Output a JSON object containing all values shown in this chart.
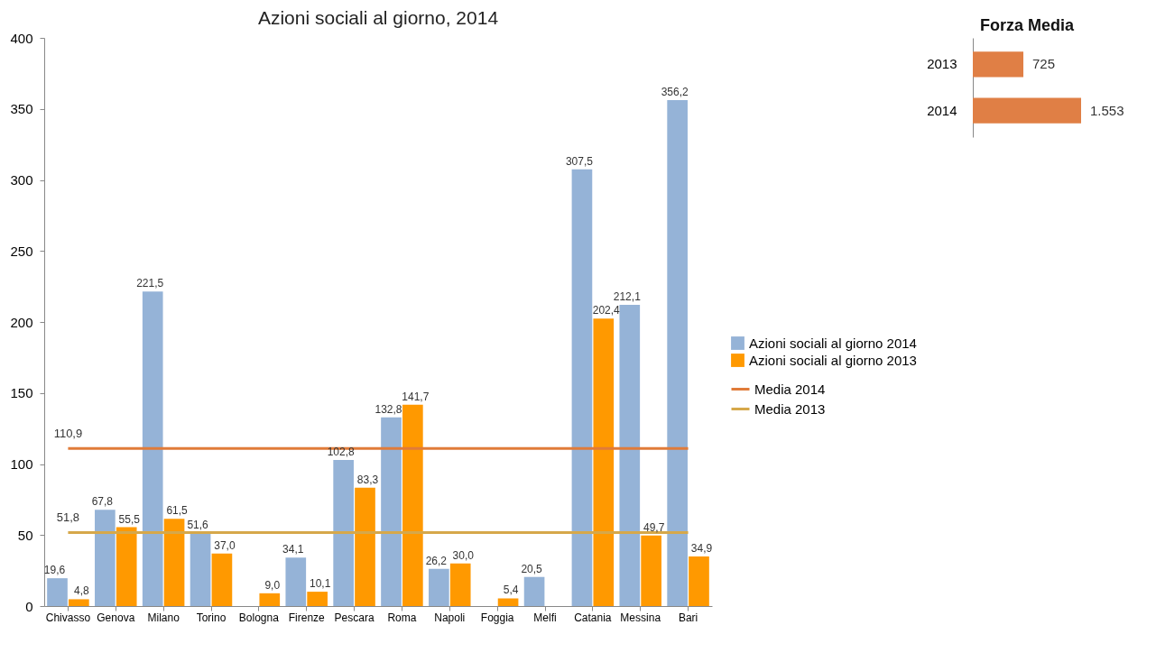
{
  "chart_data": [
    {
      "type": "bar",
      "title": "Azioni sociali al giorno, 2014",
      "categories": [
        "Chivasso",
        "Genova",
        "Milano",
        "Torino",
        "Bologna",
        "Firenze",
        "Pescara",
        "Roma",
        "Napoli",
        "Foggia",
        "Melfi",
        "Catania",
        "Messina",
        "Bari"
      ],
      "series": [
        {
          "name": "Azioni sociali al giorno 2014",
          "color": "#95b3d7",
          "values": [
            19.6,
            67.8,
            221.5,
            51.6,
            null,
            34.1,
            102.8,
            132.8,
            26.2,
            null,
            20.5,
            307.5,
            212.1,
            356.2
          ],
          "value_labels": [
            "19,6",
            "67,8",
            "221,5",
            "51,6",
            null,
            "34,1",
            "102,8",
            "132,8",
            "26,2",
            null,
            "20,5",
            "307,5",
            "212,1",
            "356,2"
          ]
        },
        {
          "name": "Azioni sociali al giorno 2013",
          "color": "#ff9900",
          "values": [
            4.8,
            55.5,
            61.5,
            37.0,
            9.0,
            10.1,
            83.3,
            141.7,
            30.0,
            5.4,
            null,
            202.4,
            49.7,
            34.9
          ],
          "value_labels": [
            "4,8",
            "55,5",
            "61,5",
            "37,0",
            "9,0",
            "10,1",
            "83,3",
            "141,7",
            "30,0",
            "5,4",
            null,
            "202,4",
            "49,7",
            "34,9"
          ]
        },
        {
          "name": "Media 2014",
          "type": "line",
          "color": "#e07b39",
          "values": [
            110.9,
            110.9,
            110.9,
            110.9,
            110.9,
            110.9,
            110.9,
            110.9,
            110.9,
            110.9,
            110.9,
            110.9,
            110.9,
            110.9
          ],
          "value_labels": [
            "110,9",
            null,
            null,
            null,
            null,
            null,
            null,
            null,
            null,
            null,
            null,
            null,
            null,
            null
          ]
        },
        {
          "name": "Media 2013",
          "type": "line",
          "color": "#d6a84a",
          "values": [
            51.8,
            51.8,
            51.8,
            51.8,
            51.8,
            51.8,
            51.8,
            51.8,
            51.8,
            51.8,
            51.8,
            51.8,
            51.8,
            51.8
          ],
          "value_labels": [
            "51,8",
            null,
            null,
            null,
            null,
            null,
            null,
            null,
            null,
            null,
            null,
            null,
            null,
            null
          ]
        }
      ],
      "ylim": [
        0,
        400
      ],
      "yticks": [
        0,
        50,
        100,
        150,
        200,
        250,
        300,
        350,
        400
      ],
      "grid": false,
      "legend": "right"
    },
    {
      "type": "bar",
      "orientation": "horizontal",
      "title": "Forza Media",
      "categories": [
        "2013",
        "2014"
      ],
      "values": [
        725,
        1553
      ],
      "value_labels": [
        "725",
        "1.553"
      ],
      "color": "#e07f45",
      "tick_labels": "y",
      "legend": false
    }
  ]
}
